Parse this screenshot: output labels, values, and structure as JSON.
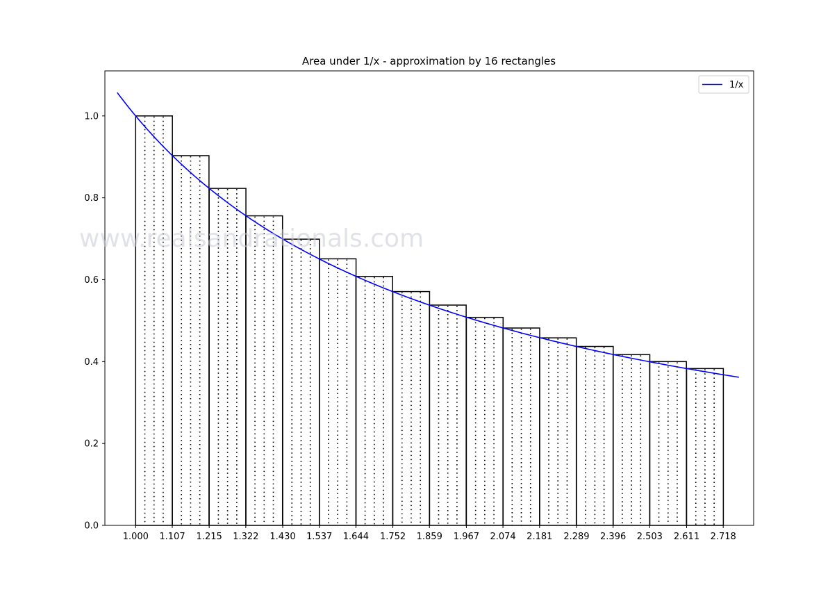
{
  "chart_data": {
    "type": "bar",
    "title": "Area under 1/x - approximation by 16 rectangles",
    "xlabel": "",
    "ylabel": "",
    "x_ticks": [
      "1.000",
      "1.107",
      "1.215",
      "1.322",
      "1.430",
      "1.537",
      "1.644",
      "1.752",
      "1.859",
      "1.967",
      "2.074",
      "2.181",
      "2.289",
      "2.396",
      "2.503",
      "2.611",
      "2.718"
    ],
    "y_ticks": [
      "0.0",
      "0.2",
      "0.4",
      "0.6",
      "0.8",
      "1.0"
    ],
    "xlim": [
      0.91,
      2.807
    ],
    "ylim": [
      0,
      1.11
    ],
    "grid": false,
    "legend_position": "upper right",
    "series": [
      {
        "name": "1/x",
        "kind": "line",
        "color": "#0000ff",
        "x_range": [
          0.946,
          2.764
        ],
        "function": "1/x"
      },
      {
        "kind": "rectangles",
        "left_edges": [
          1.0,
          1.107,
          1.215,
          1.322,
          1.43,
          1.537,
          1.644,
          1.752,
          1.859,
          1.967,
          2.074,
          2.181,
          2.289,
          2.396,
          2.503,
          2.611
        ],
        "width": 0.1074,
        "heights": [
          1.0,
          0.903,
          0.823,
          0.756,
          0.699,
          0.651,
          0.608,
          0.571,
          0.538,
          0.508,
          0.482,
          0.458,
          0.437,
          0.417,
          0.4,
          0.383
        ],
        "edge_color": "#000000",
        "hatch_color": "#000000",
        "hatch": "dotted vertical lines"
      }
    ]
  },
  "watermark": "www.realsandrationals.com"
}
